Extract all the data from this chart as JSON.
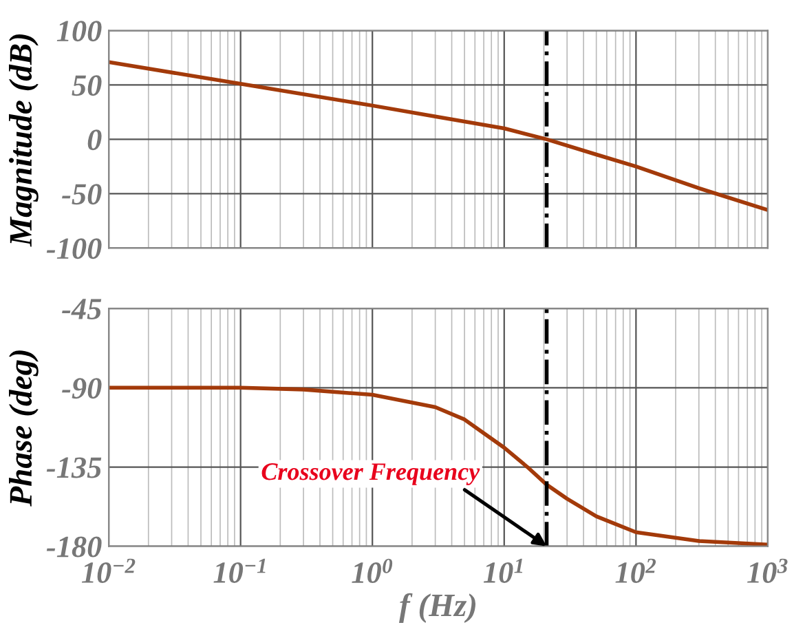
{
  "chart_data": [
    {
      "type": "line",
      "ylabel": "Magnitude (dB)",
      "x": [
        0.01,
        0.1,
        1,
        3,
        10,
        21,
        50,
        100,
        300,
        1000
      ],
      "series": [
        {
          "color": "#a33a0a",
          "values": [
            71,
            51,
            31,
            21,
            10,
            0,
            -14,
            -25,
            -45,
            -65
          ]
        }
      ],
      "xlim": [
        0.01,
        1000
      ],
      "ylim": [
        -100,
        100
      ],
      "yticks": [
        -100,
        -50,
        0,
        50,
        100
      ],
      "log": "x",
      "grid": true,
      "tick_labels": "y",
      "ref_lines": [
        {
          "axis": "x",
          "value": 21,
          "color": "#000000",
          "line_style": "dashdot"
        }
      ]
    },
    {
      "type": "line",
      "ylabel": "Phase (deg)",
      "xlabel": "f (Hz)",
      "x": [
        0.01,
        0.1,
        0.3,
        1,
        3,
        5,
        10,
        15,
        21,
        30,
        50,
        100,
        300,
        1000
      ],
      "series": [
        {
          "color": "#a33a0a",
          "values": [
            -90,
            -90,
            -91,
            -94,
            -101,
            -108,
            -124,
            -135,
            -145,
            -153,
            -163,
            -172,
            -177,
            -179
          ]
        }
      ],
      "xlim": [
        0.01,
        1000
      ],
      "xticks": [
        {
          "value": 0.01,
          "label": "10$^{−2}$"
        },
        {
          "value": 0.1,
          "label": "10$^{−1}$"
        },
        {
          "value": 1,
          "label": "10$^{0}$"
        },
        {
          "value": 10,
          "label": "10$^{1}$"
        },
        {
          "value": 100,
          "label": "10$^{2}$"
        },
        {
          "value": 1000,
          "label": "10$^{3}$"
        }
      ],
      "ylim": [
        -180,
        -45
      ],
      "yticks": [
        -180,
        -135,
        -90,
        -45
      ],
      "log": "x",
      "grid": true,
      "ref_lines": [
        {
          "axis": "x",
          "value": 21,
          "color": "#000000",
          "line_style": "dashdot"
        }
      ],
      "annotations": [
        {
          "text": "Crossover Frequency",
          "x": 21,
          "y": -180
        }
      ]
    }
  ]
}
